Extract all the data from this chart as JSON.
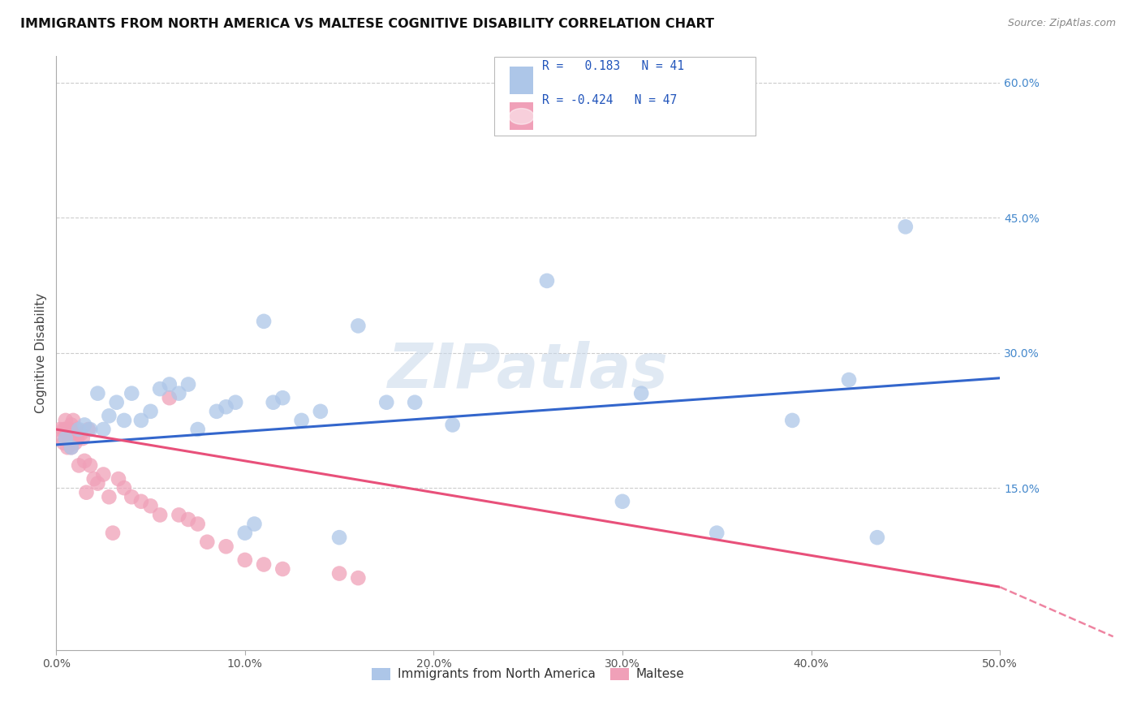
{
  "title": "IMMIGRANTS FROM NORTH AMERICA VS MALTESE COGNITIVE DISABILITY CORRELATION CHART",
  "source": "Source: ZipAtlas.com",
  "ylabel": "Cognitive Disability",
  "right_yticks": [
    "60.0%",
    "45.0%",
    "30.0%",
    "15.0%"
  ],
  "right_ytick_vals": [
    0.6,
    0.45,
    0.3,
    0.15
  ],
  "legend_blue_r_val": "0.183",
  "legend_blue_n_val": "41",
  "legend_pink_r_val": "-0.424",
  "legend_pink_n_val": "47",
  "blue_color": "#adc6e8",
  "pink_color": "#f0a0b8",
  "blue_line_color": "#3366cc",
  "pink_line_color": "#e8507a",
  "watermark": "ZIPatlas",
  "blue_scatter_x": [
    0.005,
    0.008,
    0.012,
    0.015,
    0.018,
    0.022,
    0.025,
    0.028,
    0.032,
    0.036,
    0.04,
    0.045,
    0.05,
    0.055,
    0.06,
    0.065,
    0.07,
    0.075,
    0.085,
    0.09,
    0.095,
    0.1,
    0.105,
    0.11,
    0.115,
    0.12,
    0.13,
    0.14,
    0.15,
    0.16,
    0.175,
    0.19,
    0.21,
    0.26,
    0.3,
    0.31,
    0.35,
    0.39,
    0.42,
    0.435,
    0.45
  ],
  "blue_scatter_y": [
    0.205,
    0.195,
    0.215,
    0.22,
    0.215,
    0.255,
    0.215,
    0.23,
    0.245,
    0.225,
    0.255,
    0.225,
    0.235,
    0.26,
    0.265,
    0.255,
    0.265,
    0.215,
    0.235,
    0.24,
    0.245,
    0.1,
    0.11,
    0.335,
    0.245,
    0.25,
    0.225,
    0.235,
    0.095,
    0.33,
    0.245,
    0.245,
    0.22,
    0.38,
    0.135,
    0.255,
    0.1,
    0.225,
    0.27,
    0.095,
    0.44
  ],
  "pink_scatter_x": [
    0.002,
    0.003,
    0.004,
    0.004,
    0.005,
    0.005,
    0.006,
    0.006,
    0.007,
    0.007,
    0.008,
    0.008,
    0.009,
    0.009,
    0.01,
    0.01,
    0.011,
    0.011,
    0.012,
    0.013,
    0.014,
    0.015,
    0.016,
    0.017,
    0.018,
    0.02,
    0.022,
    0.025,
    0.028,
    0.03,
    0.033,
    0.036,
    0.04,
    0.045,
    0.05,
    0.055,
    0.06,
    0.065,
    0.07,
    0.075,
    0.08,
    0.09,
    0.1,
    0.11,
    0.12,
    0.15,
    0.16
  ],
  "pink_scatter_y": [
    0.215,
    0.205,
    0.215,
    0.2,
    0.215,
    0.225,
    0.21,
    0.195,
    0.215,
    0.2,
    0.22,
    0.195,
    0.21,
    0.225,
    0.2,
    0.21,
    0.205,
    0.215,
    0.175,
    0.21,
    0.205,
    0.18,
    0.145,
    0.215,
    0.175,
    0.16,
    0.155,
    0.165,
    0.14,
    0.1,
    0.16,
    0.15,
    0.14,
    0.135,
    0.13,
    0.12,
    0.25,
    0.12,
    0.115,
    0.11,
    0.09,
    0.085,
    0.07,
    0.065,
    0.06,
    0.055,
    0.05
  ],
  "xlim": [
    0.0,
    0.5
  ],
  "ylim": [
    -0.03,
    0.63
  ],
  "blue_trend": [
    0.0,
    0.5,
    0.198,
    0.272
  ],
  "pink_solid_trend": [
    0.0,
    0.5,
    0.215,
    0.04
  ],
  "pink_dash_trend": [
    0.5,
    0.56,
    0.04,
    -0.015
  ],
  "legend_label_blue": "Immigrants from North America",
  "legend_label_pink": "Maltese",
  "xtick_vals": [
    0.0,
    0.1,
    0.2,
    0.3,
    0.4,
    0.5
  ],
  "xtick_labels": [
    "0.0%",
    "10.0%",
    "20.0%",
    "30.0%",
    "40.0%",
    "50.0%"
  ]
}
